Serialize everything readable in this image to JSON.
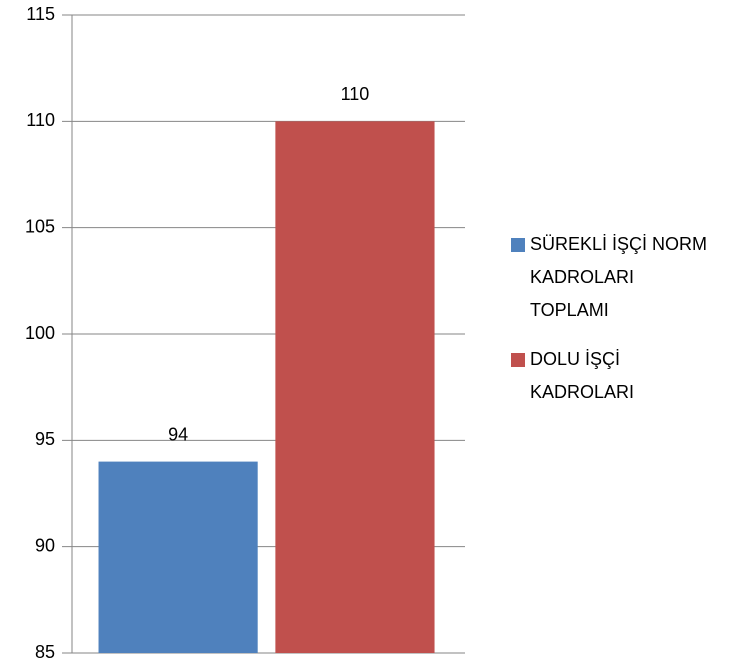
{
  "chart_data": {
    "type": "bar",
    "categories": [
      null
    ],
    "series": [
      {
        "name": "SÜREKLİ İŞÇİ NORM KADROLARI TOPLAMI",
        "color": "#4f81bd",
        "values": [
          94
        ]
      },
      {
        "name": "DOLU İŞÇİ KADROLARI",
        "color": "#c0504d",
        "values": [
          110
        ]
      }
    ],
    "ylim": [
      85,
      115
    ],
    "yticks": [
      85,
      90,
      95,
      100,
      105,
      110,
      115
    ],
    "grid": true,
    "legend": "right"
  }
}
